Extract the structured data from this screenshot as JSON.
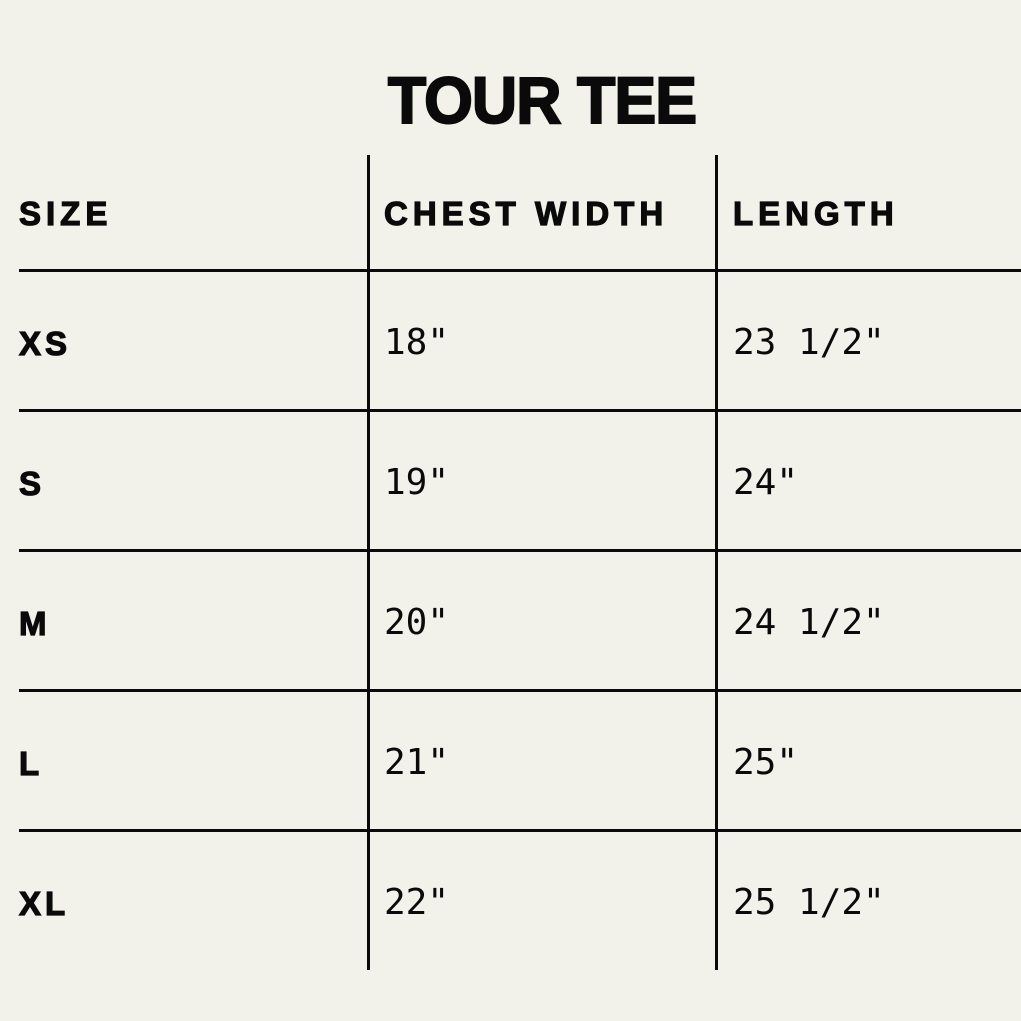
{
  "title": "TOUR TEE",
  "headers": [
    "SIZE",
    "CHEST WIDTH",
    "LENGTH"
  ],
  "rows": [
    {
      "size": "XS",
      "chest": "18\"",
      "length": "23 1/2\""
    },
    {
      "size": "S",
      "chest": "19\"",
      "length": "24\""
    },
    {
      "size": "M",
      "chest": "20\"",
      "length": "24 1/2\""
    },
    {
      "size": "L",
      "chest": "21\"",
      "length": "25\""
    },
    {
      "size": "XL",
      "chest": "22\"",
      "length": "25 1/2\""
    }
  ]
}
